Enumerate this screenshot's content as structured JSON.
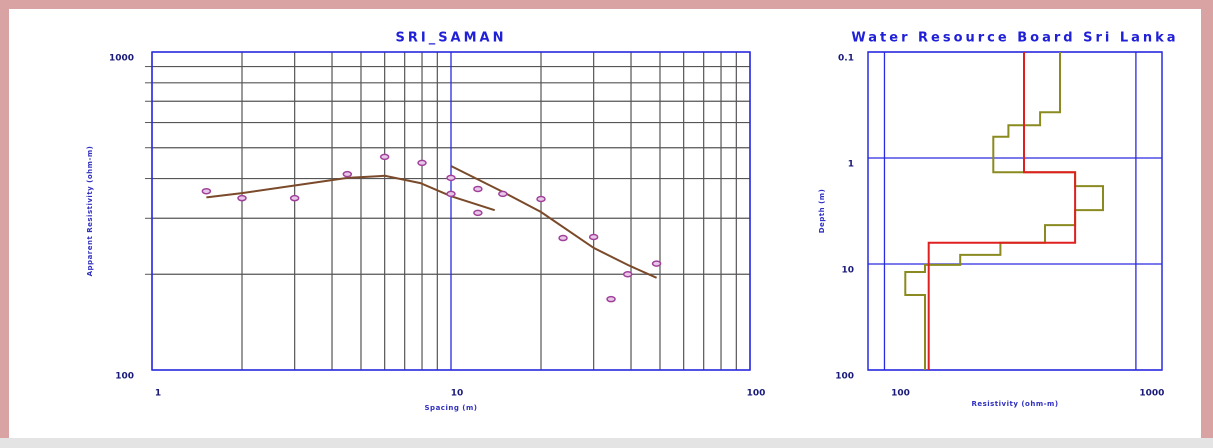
{
  "chart_data": [
    {
      "type": "line",
      "title": "SRI_SAMAN",
      "xlabel": "Spacing (m)",
      "ylabel": "Apparent Resistivity (ohm-m)",
      "xscale": "log",
      "yscale": "log",
      "xlim": [
        1,
        100
      ],
      "ylim": [
        100,
        1000
      ],
      "xticks": [
        1,
        10,
        100
      ],
      "yticks": [
        100,
        1000
      ],
      "xminor": [
        2,
        3,
        4,
        5,
        6,
        7,
        8,
        9,
        20,
        30,
        40,
        50,
        60,
        70,
        80,
        90
      ],
      "yminor": [
        200,
        300,
        400,
        500,
        600,
        700,
        800,
        900
      ],
      "grid": true,
      "grid_color": "#2a2ae0",
      "minor_grid_color": "#555555",
      "points": {
        "color": "#a0409a",
        "x": [
          1.52,
          2,
          3,
          4.5,
          6,
          8,
          10,
          10,
          12.3,
          12.3,
          14.9,
          20,
          23.7,
          30,
          34.3,
          39,
          48.7
        ],
        "values": [
          365,
          347,
          347,
          413,
          468,
          448,
          402,
          358,
          371,
          312,
          358,
          345,
          260,
          262,
          167,
          200,
          216
        ]
      },
      "series": [
        {
          "color": "#7a4a2a",
          "x": [
            1.52,
            2,
            3.1,
            4.5,
            6,
            7.9,
            10,
            14
          ],
          "values": [
            349,
            360,
            382,
            402,
            408,
            387,
            352,
            318
          ]
        },
        {
          "color": "#7a4a2a",
          "x": [
            10,
            14.9,
            20,
            30,
            39,
            48.7
          ],
          "values": [
            438,
            363,
            314,
            242,
            214,
            195
          ]
        }
      ]
    },
    {
      "type": "step",
      "title": "Water Resource Board Sri Lanka",
      "xlabel": "Resistivity (ohm-m)",
      "ylabel": "Depth (m)",
      "xscale": "log",
      "yscale": "log",
      "y_inverted": true,
      "xlim": [
        86,
        1270
      ],
      "ylim": [
        0.1,
        100
      ],
      "xticks": [
        100,
        1000
      ],
      "yticks": [
        0.1,
        1,
        10,
        100
      ],
      "grid": true,
      "grid_color": "#2a2ae0",
      "series": [
        {
          "color": "#8a8a20",
          "x": [
            499,
            499,
            416,
            416,
            311,
            311,
            271,
            271,
            573,
            573,
            740,
            740,
            573,
            573,
            435,
            435,
            289,
            289,
            200,
            200,
            145,
            145,
            121,
            121,
            145,
            145
          ],
          "values": [
            0.1,
            0.37,
            0.37,
            0.49,
            0.49,
            0.63,
            0.63,
            1.36,
            1.36,
            1.84,
            1.84,
            3.1,
            3.1,
            4.3,
            4.3,
            6.3,
            6.3,
            8.2,
            8.2,
            10.2,
            10.2,
            11.9,
            11.9,
            19.6,
            19.6,
            100
          ]
        },
        {
          "color": "#e02020",
          "x": [
            359,
            359,
            573,
            573,
            150,
            150
          ],
          "values": [
            0.1,
            1.36,
            1.36,
            6.3,
            6.3,
            100
          ]
        }
      ]
    }
  ]
}
